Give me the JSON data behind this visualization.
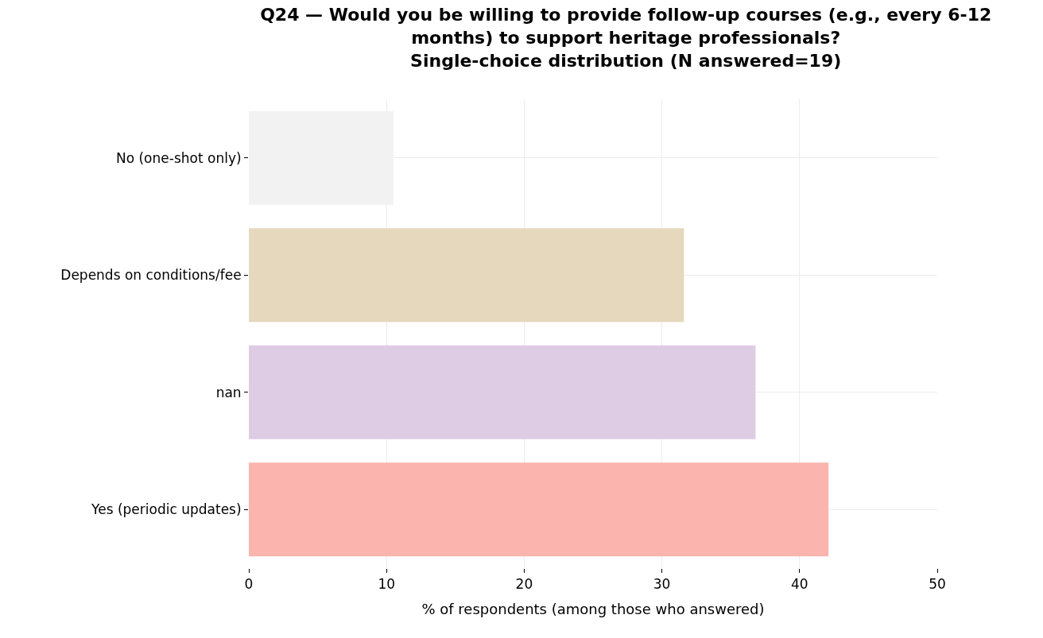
{
  "chart_data": {
    "type": "bar",
    "orientation": "horizontal",
    "title": "Q24 — Would you be willing to provide follow-up courses (e.g., every 6-12\nmonths) to support heritage professionals?\nSingle-choice distribution (N answered=19)",
    "xlabel": "% of respondents (among those who answered)",
    "categories": [
      "No (one-shot only)",
      "Depends on conditions/fee",
      "nan",
      "Yes (periodic updates)"
    ],
    "values": [
      10.5,
      31.6,
      36.8,
      42.1
    ],
    "colors": [
      "#f2f2f2",
      "#e5d8bd",
      "#decbe4",
      "#fbb4ae"
    ],
    "xlim": [
      0,
      50
    ],
    "xticks": [
      0,
      10,
      20,
      30,
      40,
      50
    ],
    "grid": true
  }
}
